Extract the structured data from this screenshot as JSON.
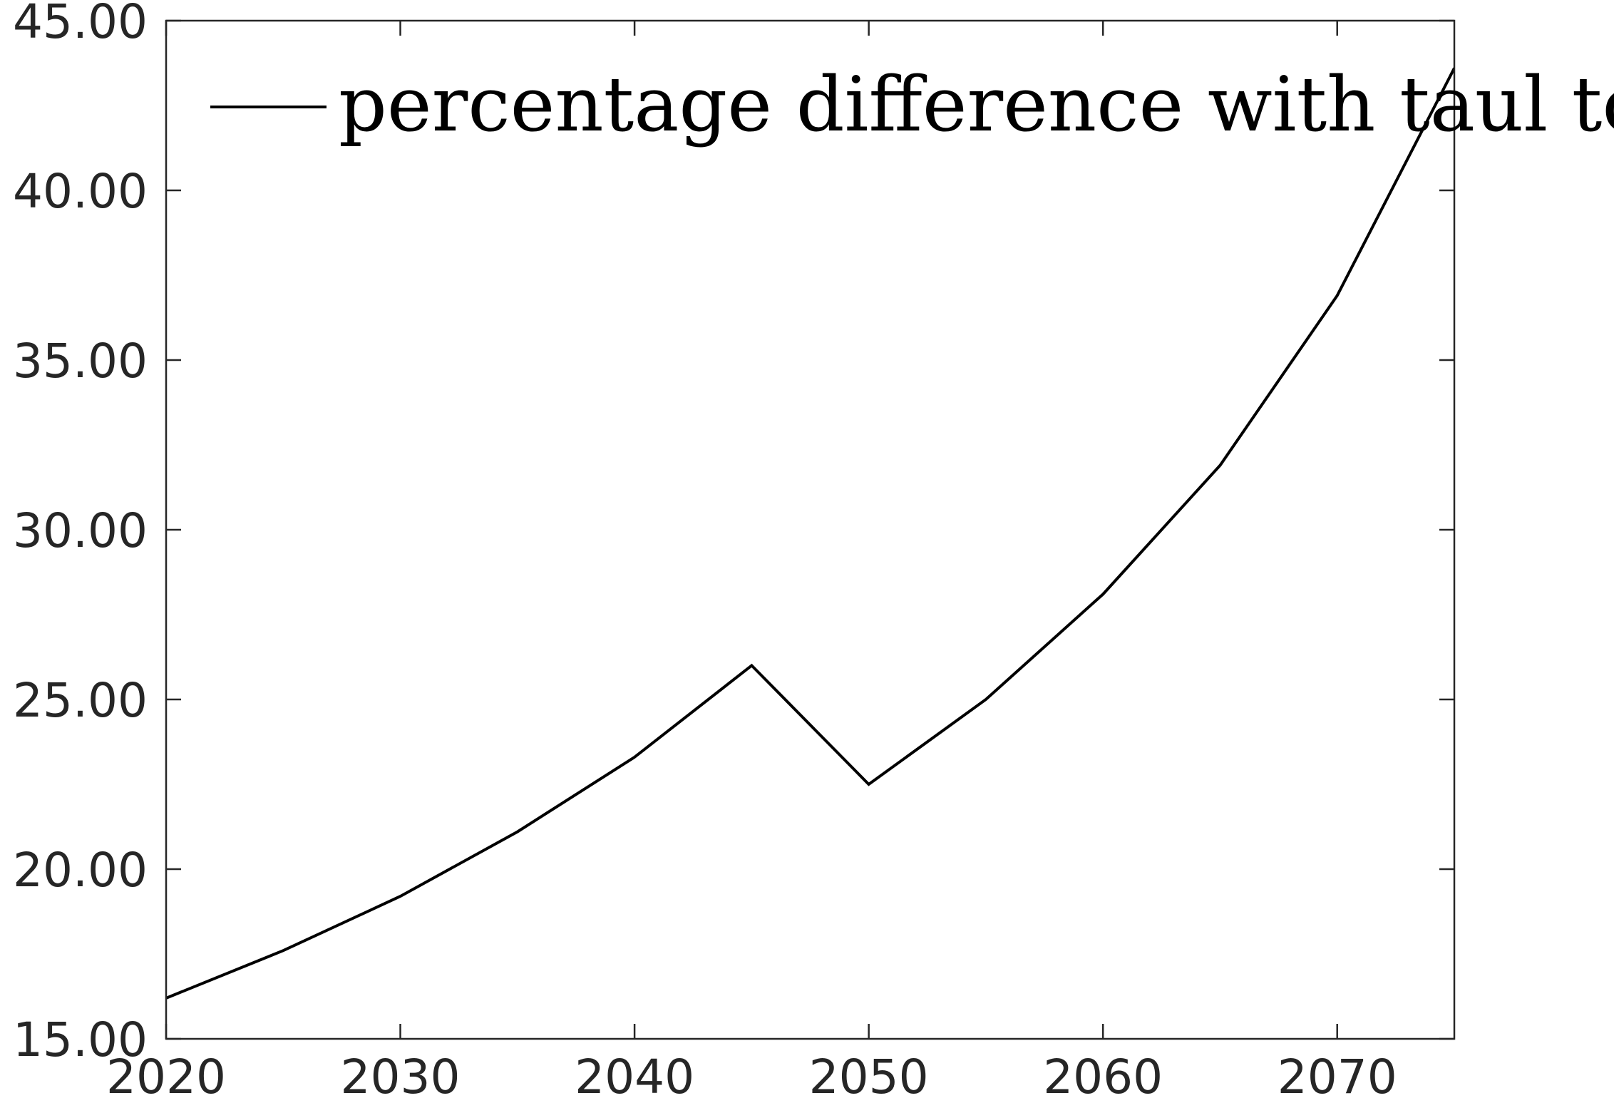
{
  "chart_data": {
    "type": "line",
    "title": "",
    "xlabel": "",
    "ylabel": "",
    "xlim": [
      2020,
      2075
    ],
    "ylim": [
      15,
      45
    ],
    "x_ticks": [
      2020,
      2030,
      2040,
      2050,
      2060,
      2070
    ],
    "x_tick_labels": [
      "2020",
      "2030",
      "2040",
      "2050",
      "2060",
      "2070"
    ],
    "y_ticks": [
      15,
      20,
      25,
      30,
      35,
      40,
      45
    ],
    "y_tick_labels": [
      "15.00",
      "20.00",
      "25.00",
      "30.00",
      "35.00",
      "40.00",
      "45.00"
    ],
    "grid": false,
    "legend_position": "top-left",
    "series": [
      {
        "name": "percentage difference with taul to r",
        "color": "#000000",
        "x": [
          2020,
          2025,
          2030,
          2035,
          2040,
          2045,
          2050,
          2055,
          2060,
          2065,
          2070,
          2075
        ],
        "y": [
          16.2,
          17.6,
          19.2,
          21.1,
          23.3,
          26.0,
          22.5,
          25.0,
          28.1,
          31.9,
          36.9,
          43.6
        ]
      }
    ]
  }
}
